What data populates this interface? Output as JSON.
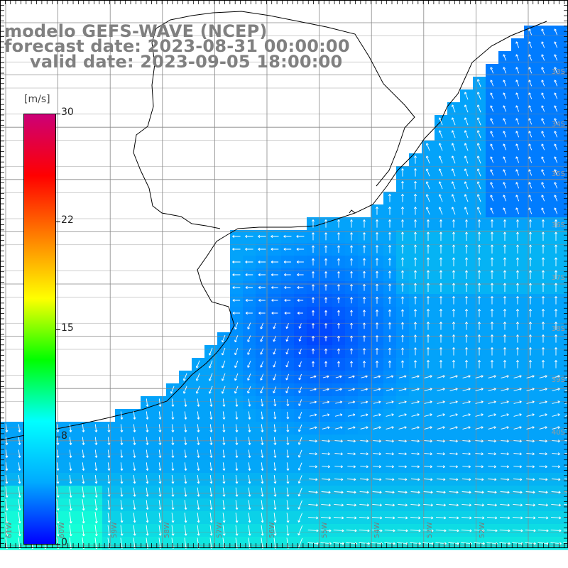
{
  "title": {
    "line1": "modelo GEFS-WAVE (NCEP)",
    "line2": "forecast date: 2023-08-31 00:00:00",
    "line3": "valid date: 2023-09-05 18:00:00"
  },
  "colorbar": {
    "unit": "[m/s]",
    "min": 0,
    "max": 30,
    "ticks": [
      "30",
      "22",
      "15",
      "8",
      "0"
    ],
    "colors": [
      "#0000ff",
      "#00aaff",
      "#00ffff",
      "#00ff00",
      "#ffff00",
      "#ff8000",
      "#ff0000",
      "#cc0077"
    ]
  },
  "map": {
    "land_color": "#ffffff",
    "grid_color": "#888888",
    "lon_labels": [
      "61W",
      "60W",
      "59W",
      "58W",
      "57W",
      "56W",
      "55W",
      "54W",
      "53W",
      "52W"
    ],
    "lat_labels": [
      "33S",
      "34S",
      "35S",
      "36S",
      "37S",
      "38S",
      "39S",
      "40S"
    ]
  }
}
